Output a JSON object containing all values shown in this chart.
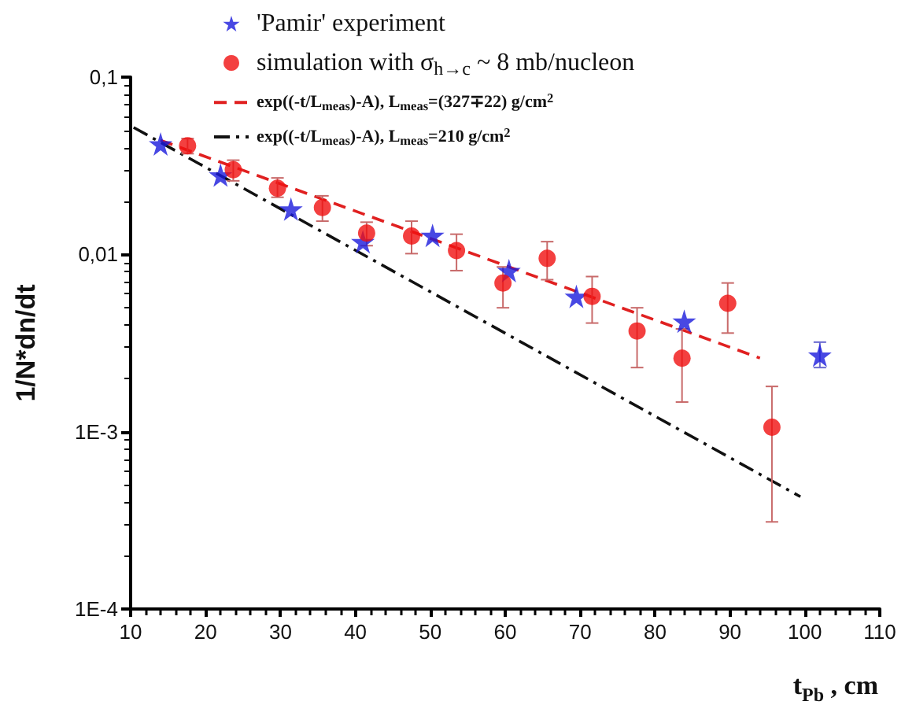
{
  "chart_data": {
    "type": "scatter",
    "xlabel": "t$_{Pb}$ ,  cm",
    "ylabel": "1/N*dn/dt",
    "log": "y",
    "xlim": [
      10,
      110
    ],
    "xticks": [
      10,
      20,
      30,
      40,
      50,
      60,
      70,
      80,
      90,
      100,
      110
    ],
    "ylim": [
      0.0001,
      0.1
    ],
    "yticks": [
      {
        "value": 0.0001,
        "label": "1E-4"
      },
      {
        "value": 0.001,
        "label": "1E-3"
      },
      {
        "value": 0.01,
        "label": "0,01"
      },
      {
        "value": 0.1,
        "label": "0,1"
      }
    ],
    "grid": false,
    "legend": "top",
    "series": [
      {
        "name": "'Pamir' experiment",
        "marker": "star",
        "color": "#1a1adc",
        "x": [
          14,
          22,
          31.4,
          41,
          50.3,
          60.5,
          69.5,
          83.9,
          102
        ],
        "values": [
          0.042,
          0.028,
          0.018,
          0.0118,
          0.0128,
          0.0081,
          0.0058,
          0.0042,
          0.0027
        ],
        "errors": [
          null,
          null,
          null,
          null,
          null,
          null,
          null,
          null,
          [
            0.0023,
            0.0032
          ]
        ]
      },
      {
        "name": "simulation with σ$_{h→c}$ ~ 8 mb/nucleon",
        "marker": "circle",
        "color": "#f01010",
        "x": [
          17.6,
          23.7,
          29.6,
          35.6,
          41.5,
          47.5,
          53.5,
          59.7,
          65.6,
          71.6,
          77.6,
          83.6,
          89.7,
          95.6
        ],
        "values": [
          0.041,
          0.03,
          0.0236,
          0.0184,
          0.0132,
          0.0127,
          0.0105,
          0.0069,
          0.0095,
          0.0058,
          0.0037,
          0.0026,
          0.0053,
          0.00106
        ],
        "errors": [
          [
            0.037,
            0.045
          ],
          [
            0.026,
            0.034
          ],
          [
            0.021,
            0.027
          ],
          [
            0.0154,
            0.0214
          ],
          [
            0.0112,
            0.0152
          ],
          [
            0.0101,
            0.0154
          ],
          [
            0.0081,
            0.013
          ],
          [
            0.005,
            0.0085
          ],
          [
            0.0072,
            0.0118
          ],
          [
            0.0041,
            0.0075
          ],
          [
            0.0023,
            0.005
          ],
          [
            0.00147,
            0.0038
          ],
          [
            0.0036,
            0.0069
          ],
          [
            0.00031,
            0.0018
          ]
        ]
      },
      {
        "name": "exp((-t/L$_{meas}$)-A), L$_{meas}$=(327∓22) g/cm$^{2}$",
        "type": "line",
        "line_style": "dashed",
        "marker": "none",
        "color": "#e02020",
        "x": [
          14,
          94
        ],
        "values": [
          0.044,
          0.0026
        ]
      },
      {
        "name": "exp((-t/L$_{meas}$)-A), L$_{meas}$=210 g/cm$^{2}$",
        "type": "line",
        "line_style": "dashdot",
        "marker": "none",
        "color": "#111111",
        "x": [
          10.4,
          99.4
        ],
        "values": [
          0.052,
          0.00043
        ]
      }
    ]
  }
}
